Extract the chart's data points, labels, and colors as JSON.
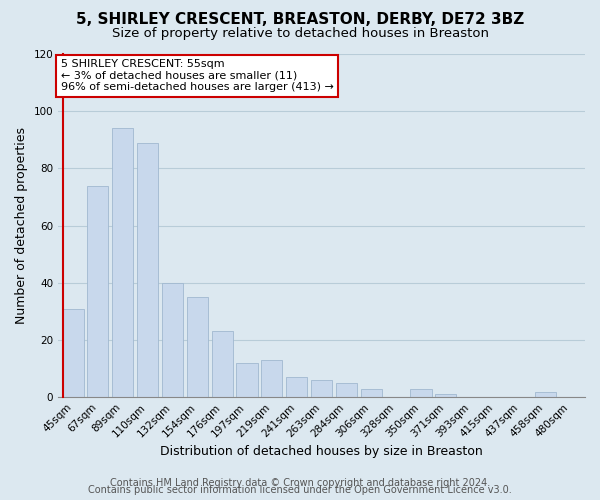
{
  "title": "5, SHIRLEY CRESCENT, BREASTON, DERBY, DE72 3BZ",
  "subtitle": "Size of property relative to detached houses in Breaston",
  "xlabel": "Distribution of detached houses by size in Breaston",
  "ylabel": "Number of detached properties",
  "bar_color": "#c8d8ec",
  "bar_edge_color": "#a0b8d0",
  "highlight_color": "#cc0000",
  "categories": [
    "45sqm",
    "67sqm",
    "89sqm",
    "110sqm",
    "132sqm",
    "154sqm",
    "176sqm",
    "197sqm",
    "219sqm",
    "241sqm",
    "263sqm",
    "284sqm",
    "306sqm",
    "328sqm",
    "350sqm",
    "371sqm",
    "393sqm",
    "415sqm",
    "437sqm",
    "458sqm",
    "480sqm"
  ],
  "values": [
    31,
    74,
    94,
    89,
    40,
    35,
    23,
    12,
    13,
    7,
    6,
    5,
    3,
    0,
    3,
    1,
    0,
    0,
    0,
    2,
    0
  ],
  "highlight_bar_index": 0,
  "ylim": [
    0,
    120
  ],
  "yticks": [
    0,
    20,
    40,
    60,
    80,
    100,
    120
  ],
  "annotation_line1": "5 SHIRLEY CRESCENT: 55sqm",
  "annotation_line2": "← 3% of detached houses are smaller (11)",
  "annotation_line3": "96% of semi-detached houses are larger (413) →",
  "footer_line1": "Contains HM Land Registry data © Crown copyright and database right 2024.",
  "footer_line2": "Contains public sector information licensed under the Open Government Licence v3.0.",
  "background_color": "#dce8f0",
  "plot_bg_color": "#dce8f0",
  "grid_color": "#b8ccd8",
  "title_fontsize": 11,
  "subtitle_fontsize": 9.5,
  "axis_label_fontsize": 9,
  "tick_fontsize": 7.5,
  "footer_fontsize": 7
}
